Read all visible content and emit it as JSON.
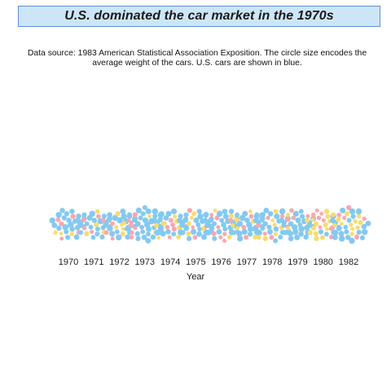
{
  "title": "U.S. dominated the car market in the 1970s",
  "subtitle": {
    "line1": "Data source: 1983 American Statistical Association Exposition. The circle size encodes the",
    "line2": "average weight of the cars. U.S. cars are shown in blue."
  },
  "colors": {
    "us": "#84c9f0",
    "europe": "#f7a7b2",
    "japan": "#f7dc6f",
    "title_bg": "#cde6f7",
    "title_border": "#5b8fd6"
  },
  "chart_data": {
    "type": "beeswarm",
    "xlabel": "Year",
    "ylabel": "",
    "categories": [
      "1970",
      "1971",
      "1972",
      "1973",
      "1974",
      "1975",
      "1976",
      "1977",
      "1978",
      "1979",
      "1980",
      "1982"
    ],
    "series": [
      {
        "values": [
          21,
          19,
          18,
          29,
          15,
          20,
          23,
          18,
          22,
          23,
          6,
          20
        ]
      },
      {
        "values": [
          5,
          4,
          5,
          7,
          6,
          6,
          8,
          4,
          6,
          4,
          9,
          6
        ]
      },
      {
        "values": [
          3,
          4,
          5,
          4,
          6,
          4,
          4,
          6,
          8,
          2,
          14,
          12
        ]
      }
    ]
  }
}
